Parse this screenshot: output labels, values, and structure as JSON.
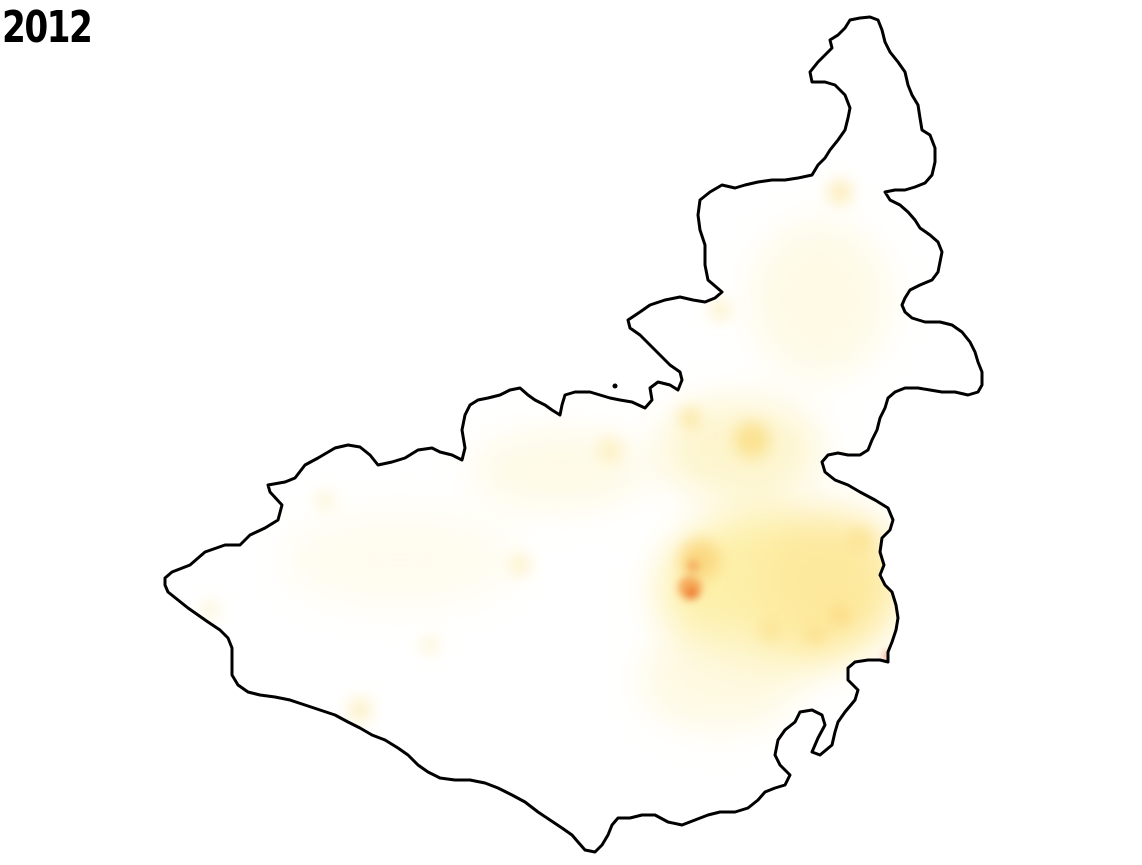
{
  "map": {
    "year": "2012",
    "colors": {
      "background": "#ffffff",
      "boundary": "#000000",
      "density_low": "#fffbe6",
      "density_mid": "#fdeea0",
      "density_high": "#fbd978",
      "density_peak": "#f0883a"
    }
  }
}
